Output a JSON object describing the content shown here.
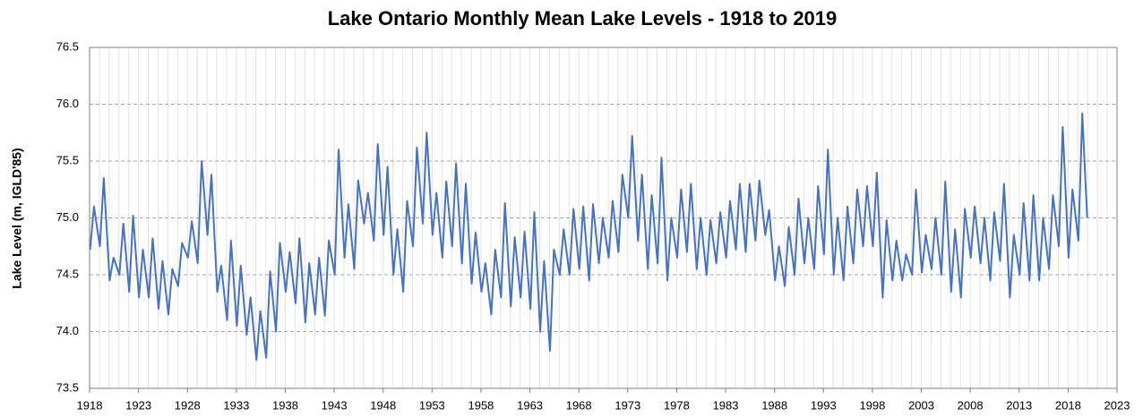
{
  "chart_data": {
    "type": "line",
    "title": "Lake Ontario Monthly Mean Lake Levels - 1918 to 2019",
    "ylabel": "Lake Level (m, IGLD'85)",
    "xlim": [
      1918,
      2023
    ],
    "xticks": [
      1918,
      1923,
      1928,
      1933,
      1938,
      1943,
      1948,
      1953,
      1958,
      1963,
      1968,
      1973,
      1978,
      1983,
      1988,
      1993,
      1998,
      2003,
      2008,
      2013,
      2018,
      2023
    ],
    "ylim": [
      73.5,
      76.5
    ],
    "yticks": [
      {
        "value": 73.5,
        "label": "73.5"
      },
      {
        "value": 74,
        "label": "74.0"
      },
      {
        "value": 74.5,
        "label": "74.5"
      },
      {
        "value": 75,
        "label": "75.0"
      },
      {
        "value": 75.5,
        "label": "75.5"
      },
      {
        "value": 76,
        "label": "76.0"
      },
      {
        "value": 76.5,
        "label": "76.5"
      }
    ],
    "grid": true,
    "series": [
      {
        "color": "#4472c4",
        "x": [
          1918.05,
          1918.45,
          1919.05,
          1919.45,
          1920.05,
          1920.45,
          1921.05,
          1921.45,
          1922.05,
          1922.45,
          1923.05,
          1923.45,
          1924.05,
          1924.45,
          1925.05,
          1925.45,
          1926.05,
          1926.45,
          1927.05,
          1927.45,
          1928.05,
          1928.45,
          1929.05,
          1929.45,
          1930.05,
          1930.45,
          1931.05,
          1931.45,
          1932.05,
          1932.45,
          1933.05,
          1933.45,
          1934.05,
          1934.45,
          1935.05,
          1935.45,
          1936.05,
          1936.45,
          1937.05,
          1937.45,
          1938.05,
          1938.45,
          1939.05,
          1939.45,
          1940.05,
          1940.45,
          1941.05,
          1941.45,
          1942.05,
          1942.45,
          1943.05,
          1943.45,
          1944.05,
          1944.45,
          1945.05,
          1945.45,
          1946.05,
          1946.45,
          1947.05,
          1947.45,
          1948.05,
          1948.45,
          1949.05,
          1949.45,
          1950.05,
          1950.45,
          1951.05,
          1951.45,
          1952.05,
          1952.45,
          1953.05,
          1953.45,
          1954.05,
          1954.45,
          1955.05,
          1955.45,
          1956.05,
          1956.45,
          1957.05,
          1957.45,
          1958.05,
          1958.45,
          1959.05,
          1959.45,
          1960.05,
          1960.45,
          1961.05,
          1961.45,
          1962.05,
          1962.45,
          1963.05,
          1963.45,
          1964.05,
          1964.45,
          1965.05,
          1965.45,
          1966.05,
          1966.45,
          1967.05,
          1967.45,
          1968.05,
          1968.45,
          1969.05,
          1969.45,
          1970.05,
          1970.45,
          1971.05,
          1971.45,
          1972.05,
          1972.45,
          1973.05,
          1973.45,
          1974.05,
          1974.45,
          1975.05,
          1975.45,
          1976.05,
          1976.45,
          1977.05,
          1977.45,
          1978.05,
          1978.45,
          1979.05,
          1979.45,
          1980.05,
          1980.45,
          1981.05,
          1981.45,
          1982.05,
          1982.45,
          1983.05,
          1983.45,
          1984.05,
          1984.45,
          1985.05,
          1985.45,
          1986.05,
          1986.45,
          1987.05,
          1987.45,
          1988.05,
          1988.45,
          1989.05,
          1989.45,
          1990.05,
          1990.45,
          1991.05,
          1991.45,
          1992.05,
          1992.45,
          1993.05,
          1993.45,
          1994.05,
          1994.45,
          1995.05,
          1995.45,
          1996.05,
          1996.45,
          1997.05,
          1997.45,
          1998.05,
          1998.45,
          1999.05,
          1999.45,
          2000.05,
          2000.45,
          2001.05,
          2001.45,
          2002.05,
          2002.45,
          2003.05,
          2003.45,
          2004.05,
          2004.45,
          2005.05,
          2005.45,
          2006.05,
          2006.45,
          2007.05,
          2007.45,
          2008.05,
          2008.45,
          2009.05,
          2009.45,
          2010.05,
          2010.45,
          2011.05,
          2011.45,
          2012.05,
          2012.45,
          2013.05,
          2013.45,
          2014.05,
          2014.45,
          2015.05,
          2015.45,
          2016.05,
          2016.45,
          2017.05,
          2017.45,
          2018.05,
          2018.45,
          2019.05,
          2019.45,
          2019.95
        ],
        "values": [
          74.72,
          75.1,
          74.75,
          75.35,
          74.45,
          74.65,
          74.5,
          74.95,
          74.35,
          75.02,
          74.3,
          74.72,
          74.3,
          74.82,
          74.2,
          74.62,
          74.15,
          74.55,
          74.4,
          74.78,
          74.65,
          74.97,
          74.6,
          75.5,
          74.85,
          75.38,
          74.35,
          74.58,
          74.1,
          74.8,
          74.05,
          74.58,
          73.97,
          74.3,
          73.75,
          74.18,
          73.77,
          74.53,
          74.0,
          74.78,
          74.35,
          74.7,
          74.25,
          74.82,
          74.08,
          74.6,
          74.15,
          74.65,
          74.14,
          74.8,
          74.5,
          75.6,
          74.65,
          75.12,
          74.55,
          75.33,
          74.95,
          75.22,
          74.8,
          75.65,
          74.85,
          75.45,
          74.5,
          74.9,
          74.35,
          75.15,
          74.75,
          75.62,
          74.95,
          75.75,
          74.85,
          75.22,
          74.65,
          75.32,
          74.75,
          75.48,
          74.6,
          75.3,
          74.42,
          74.87,
          74.35,
          74.6,
          74.15,
          74.72,
          74.3,
          75.13,
          74.22,
          74.83,
          74.3,
          74.88,
          74.2,
          75.05,
          74.0,
          74.62,
          73.83,
          74.72,
          74.5,
          74.9,
          74.5,
          75.08,
          74.55,
          75.1,
          74.45,
          75.12,
          74.6,
          75.0,
          74.65,
          75.15,
          74.7,
          75.38,
          75.0,
          75.72,
          74.8,
          75.38,
          74.55,
          75.2,
          74.6,
          75.53,
          74.45,
          75.0,
          74.65,
          75.25,
          74.7,
          75.3,
          74.55,
          75.0,
          74.5,
          74.98,
          74.6,
          75.05,
          74.65,
          75.15,
          74.72,
          75.3,
          74.7,
          75.3,
          74.8,
          75.33,
          74.85,
          75.07,
          74.45,
          74.75,
          74.4,
          74.92,
          74.5,
          75.17,
          74.6,
          75.0,
          74.55,
          75.28,
          74.68,
          75.6,
          74.5,
          75.0,
          74.45,
          75.1,
          74.6,
          75.25,
          74.75,
          75.28,
          74.75,
          75.4,
          74.3,
          74.98,
          74.45,
          74.8,
          74.45,
          74.68,
          74.5,
          75.25,
          74.52,
          74.85,
          74.55,
          75.0,
          74.5,
          75.32,
          74.35,
          74.9,
          74.3,
          75.08,
          74.65,
          75.1,
          74.6,
          75.0,
          74.45,
          75.05,
          74.62,
          75.3,
          74.3,
          74.85,
          74.5,
          75.13,
          74.45,
          75.2,
          74.45,
          75.0,
          74.55,
          75.2,
          74.75,
          75.8,
          74.65,
          75.25,
          74.8,
          75.92,
          75.0
        ]
      }
    ]
  }
}
